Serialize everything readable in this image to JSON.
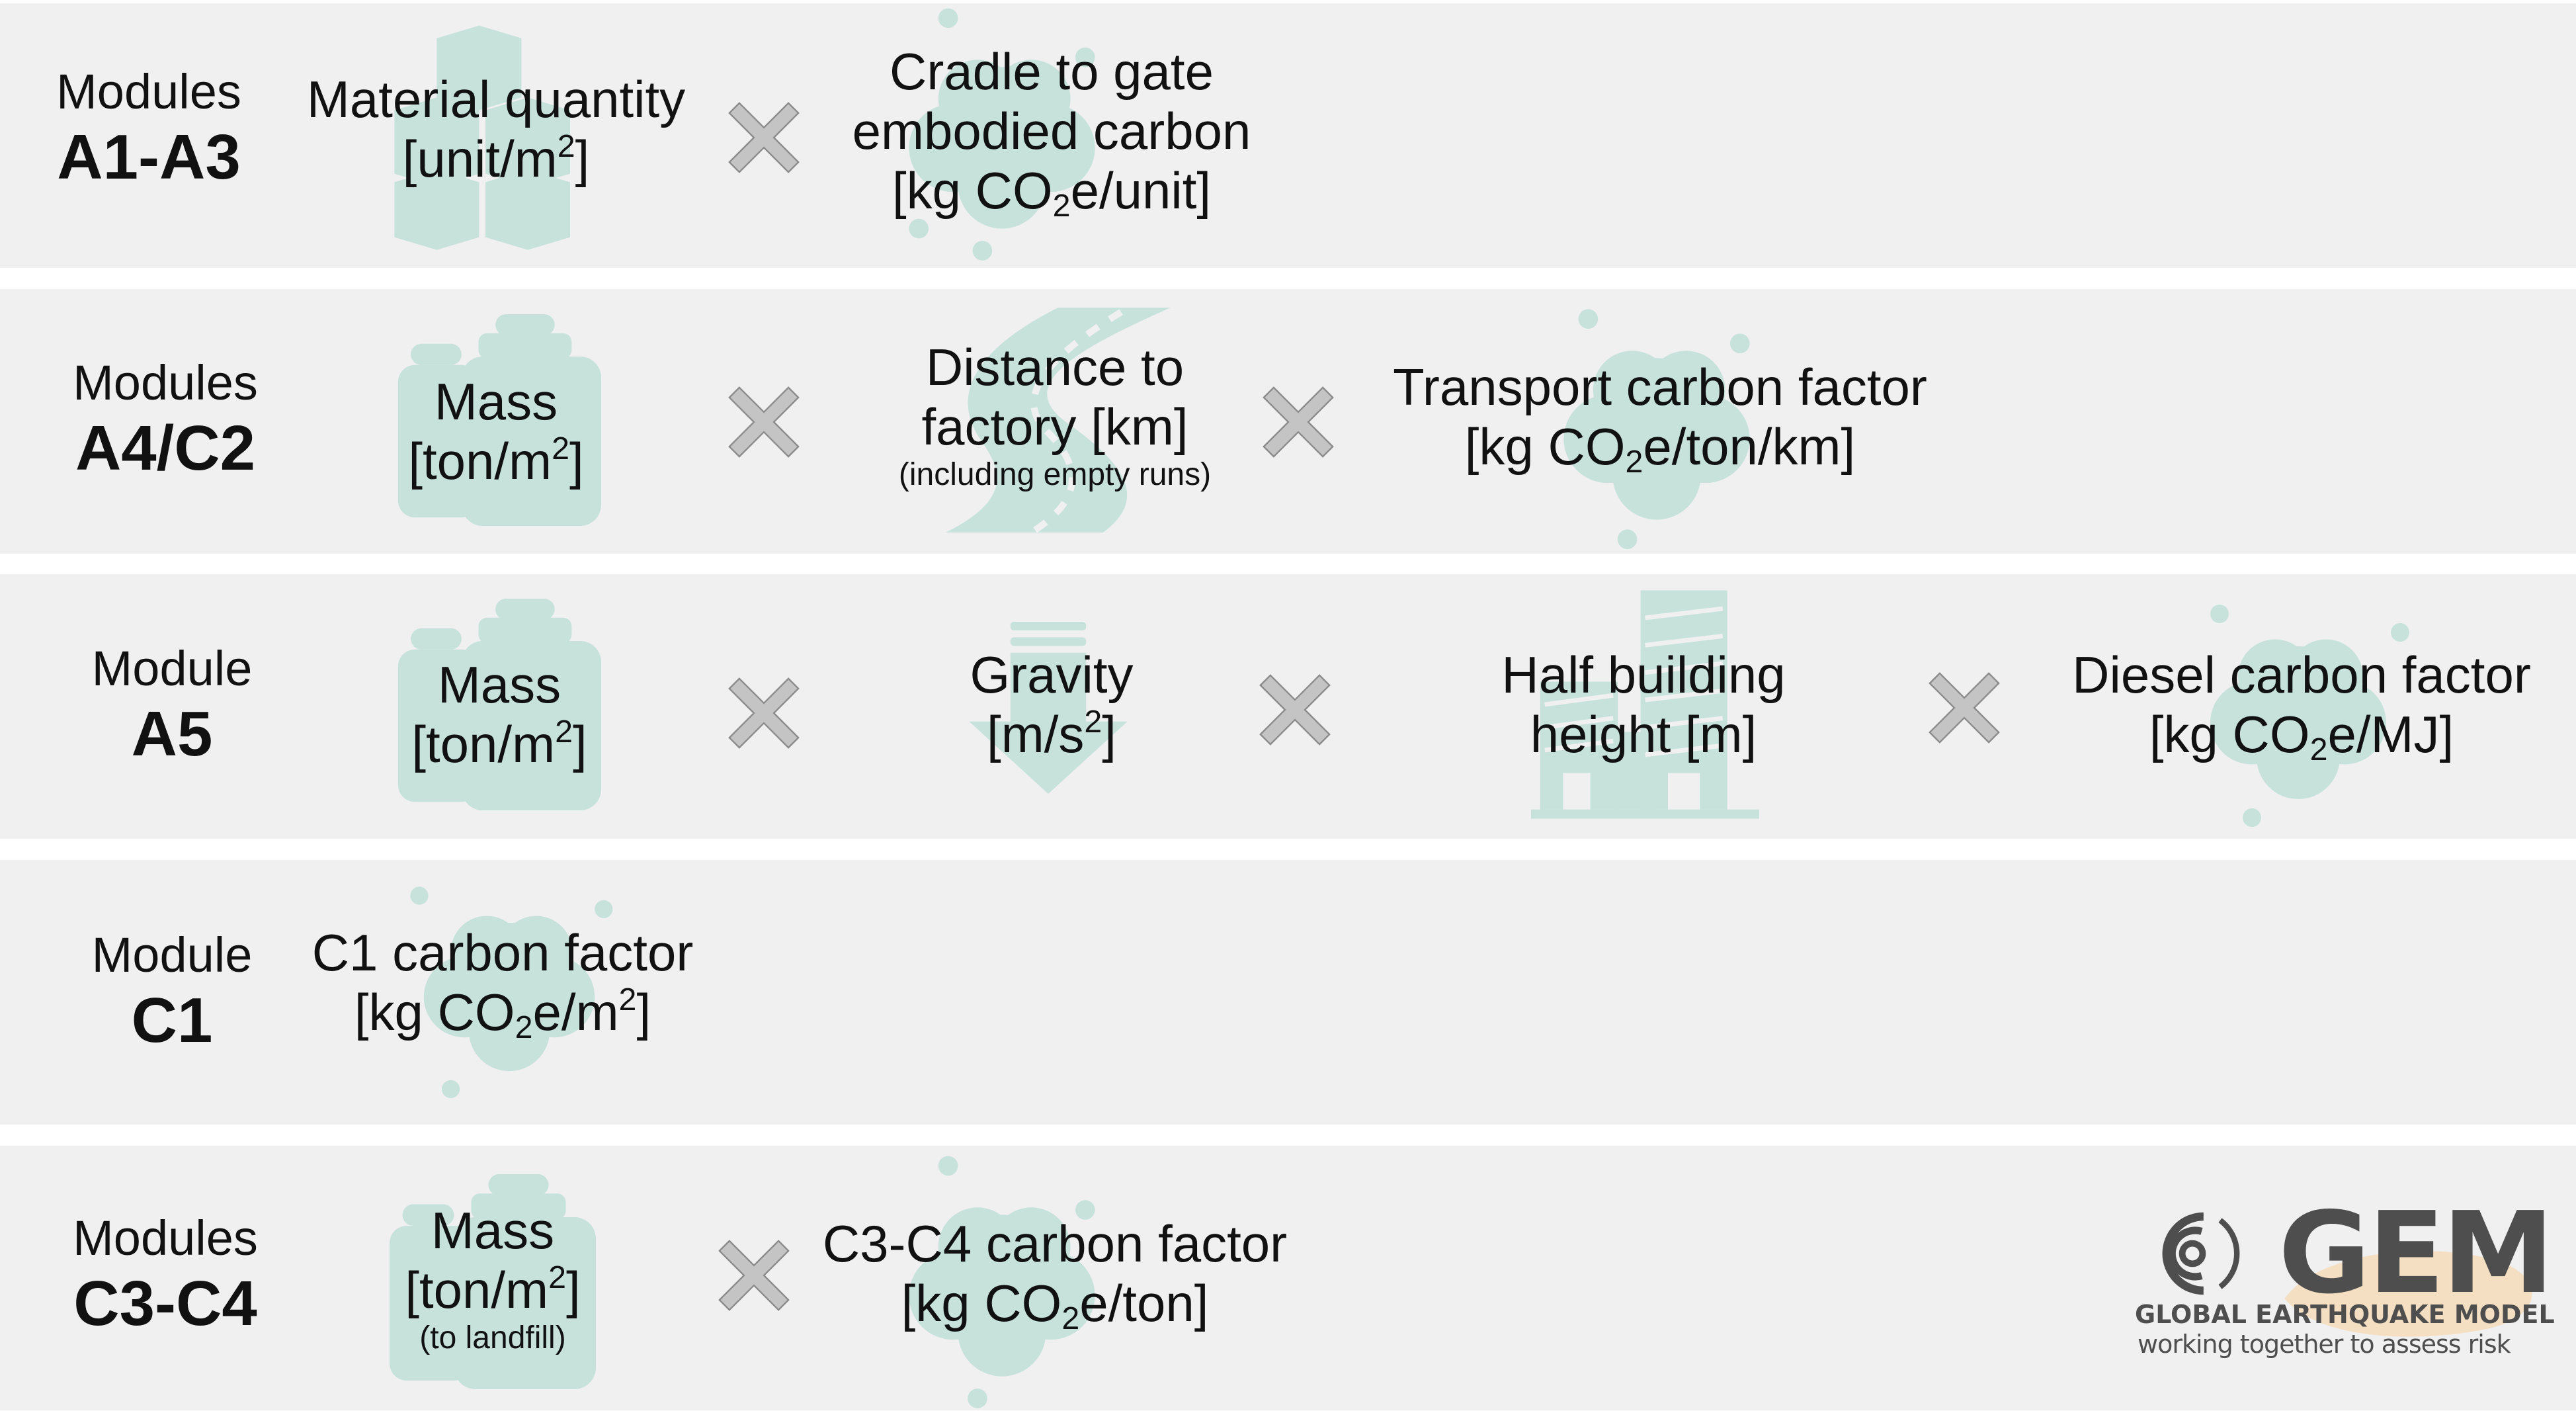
{
  "colors": {
    "row_bg": "#f0f0f0",
    "icon": "#c6e2db",
    "times": "#c4c4c4",
    "brand_dark": "#4e4e4e",
    "brand_accent": "#f5d9b3"
  },
  "rows": [
    {
      "module_label": "Modules",
      "module_code": "A1-A3",
      "term1": {
        "line1": "Material quantity",
        "line2_pre": "[unit/m",
        "line2_sup": "2",
        "line2_post": "]",
        "icon": "boxes-icon"
      },
      "term2": {
        "line1": "Cradle to gate",
        "line2": "embodied carbon",
        "line3_pre": "[kg CO",
        "line3_sub": "2",
        "line3_post": "e/unit]",
        "icon": "cloud-icon"
      }
    },
    {
      "module_label": "Modules",
      "module_code": "A4/C2",
      "term1": {
        "line1": "Mass",
        "line2_pre": "[ton/m",
        "line2_sup": "2",
        "line2_post": "]",
        "icon": "weight-icon"
      },
      "term2": {
        "line1": "Distance to",
        "line2": "factory [km]",
        "note": "(including empty runs)",
        "icon": "road-icon"
      },
      "term3": {
        "line1": "Transport carbon factor",
        "line2_pre": "[kg CO",
        "line2_sub": "2",
        "line2_post": "e/ton/km]",
        "icon": "cloud-icon"
      }
    },
    {
      "module_label": "Module",
      "module_code": "A5",
      "term1": {
        "line1": "Mass",
        "line2_pre": "[ton/m",
        "line2_sup": "2",
        "line2_post": "]",
        "icon": "weight-icon"
      },
      "term2": {
        "line1": "Gravity",
        "line2_pre": "[m/s",
        "line2_sup": "2",
        "line2_post": "]",
        "icon": "down-arrow-icon"
      },
      "term3": {
        "line1": "Half building",
        "line2": "height [m]",
        "icon": "buildings-icon"
      },
      "term4": {
        "line1": "Diesel carbon factor",
        "line2_pre": "[kg CO",
        "line2_sub": "2",
        "line2_post": "e/MJ]",
        "icon": "cloud-icon"
      }
    },
    {
      "module_label": "Module",
      "module_code": "C1",
      "term1": {
        "line1": "C1 carbon factor",
        "line2_pre": "[kg CO",
        "line2_sub": "2",
        "line2_mid": "e/m",
        "line2_sup": "2",
        "line2_post": "]",
        "icon": "cloud-icon"
      }
    },
    {
      "module_label": "Modules",
      "module_code": "C3-C4",
      "term1": {
        "line1": "Mass",
        "line2_pre": "[ton/m",
        "line2_sup": "2",
        "line2_post": "]",
        "note": "(to landfill)",
        "icon": "weight-icon"
      },
      "term2": {
        "line1": "C3-C4 carbon factor",
        "line2_pre": "[kg CO",
        "line2_sub": "2",
        "line2_post": "e/ton]",
        "icon": "cloud-icon"
      }
    }
  ],
  "logo": {
    "wordmark": "GEM",
    "name": "GLOBAL EARTHQUAKE MODEL",
    "tagline": "working together to assess risk"
  }
}
